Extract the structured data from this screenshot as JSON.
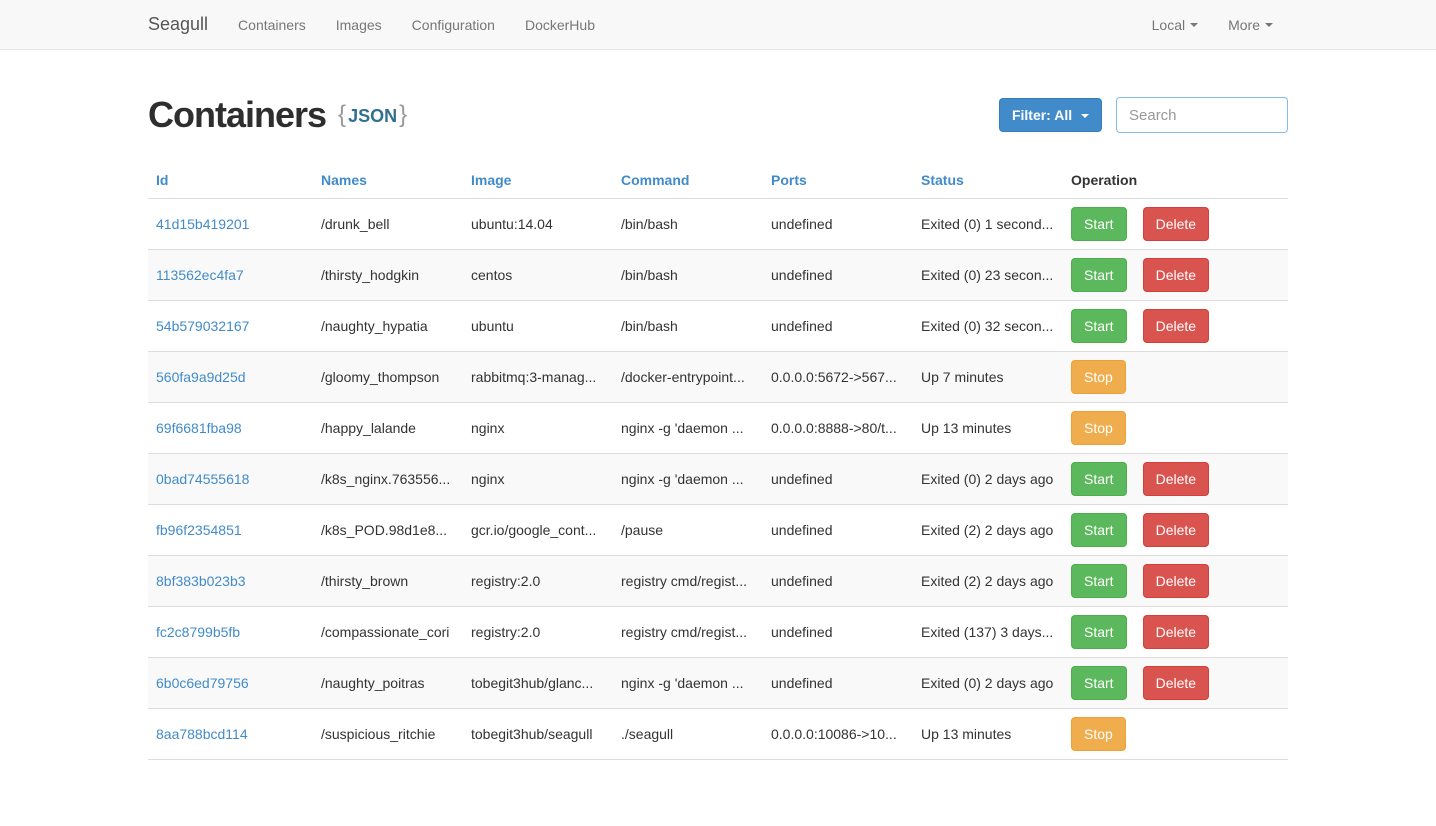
{
  "navbar": {
    "brand": "Seagull",
    "items": [
      {
        "label": "Containers"
      },
      {
        "label": "Images"
      },
      {
        "label": "Configuration"
      },
      {
        "label": "DockerHub"
      }
    ],
    "right_items": [
      {
        "label": "Local"
      },
      {
        "label": "More"
      }
    ]
  },
  "header": {
    "title": "Containers",
    "json_open_brace": "{",
    "json_label": "JSON",
    "json_close_brace": "}",
    "filter_button_label": "Filter: All",
    "search_placeholder": "Search",
    "search_value": ""
  },
  "colors": {
    "primary": "#428bca",
    "success": "#5cb85c",
    "danger": "#d9534f",
    "warning": "#f0ad4e",
    "navbar_bg": "#f8f8f8",
    "stripe_bg": "#f9f9f9"
  },
  "table": {
    "columns": [
      {
        "label": "Id",
        "sortable": true
      },
      {
        "label": "Names",
        "sortable": true
      },
      {
        "label": "Image",
        "sortable": true
      },
      {
        "label": "Command",
        "sortable": true
      },
      {
        "label": "Ports",
        "sortable": true
      },
      {
        "label": "Status",
        "sortable": true
      },
      {
        "label": "Operation",
        "sortable": false
      }
    ],
    "rows": [
      {
        "id": "41d15b419201",
        "name": "/drunk_bell",
        "image": "ubuntu:14.04",
        "command": "/bin/bash",
        "ports": "undefined",
        "status": "Exited (0) 1 second...",
        "actions": [
          {
            "label": "Start",
            "type": "success"
          },
          {
            "label": "Delete",
            "type": "danger"
          }
        ]
      },
      {
        "id": "113562ec4fa7",
        "name": "/thirsty_hodgkin",
        "image": "centos",
        "command": "/bin/bash",
        "ports": "undefined",
        "status": "Exited (0) 23 secon...",
        "actions": [
          {
            "label": "Start",
            "type": "success"
          },
          {
            "label": "Delete",
            "type": "danger"
          }
        ]
      },
      {
        "id": "54b579032167",
        "name": "/naughty_hypatia",
        "image": "ubuntu",
        "command": "/bin/bash",
        "ports": "undefined",
        "status": "Exited (0) 32 secon...",
        "actions": [
          {
            "label": "Start",
            "type": "success"
          },
          {
            "label": "Delete",
            "type": "danger"
          }
        ]
      },
      {
        "id": "560fa9a9d25d",
        "name": "/gloomy_thompson",
        "image": "rabbitmq:3-manag...",
        "command": "/docker-entrypoint...",
        "ports": "0.0.0.0:5672->567...",
        "status": "Up 7 minutes",
        "actions": [
          {
            "label": "Stop",
            "type": "warning"
          }
        ]
      },
      {
        "id": "69f6681fba98",
        "name": "/happy_lalande",
        "image": "nginx",
        "command": "nginx -g 'daemon ...",
        "ports": "0.0.0.0:8888->80/t...",
        "status": "Up 13 minutes",
        "actions": [
          {
            "label": "Stop",
            "type": "warning"
          }
        ]
      },
      {
        "id": "0bad74555618",
        "name": "/k8s_nginx.763556...",
        "image": "nginx",
        "command": "nginx -g 'daemon ...",
        "ports": "undefined",
        "status": "Exited (0) 2 days ago",
        "actions": [
          {
            "label": "Start",
            "type": "success"
          },
          {
            "label": "Delete",
            "type": "danger"
          }
        ]
      },
      {
        "id": "fb96f2354851",
        "name": "/k8s_POD.98d1e8...",
        "image": "gcr.io/google_cont...",
        "command": "/pause",
        "ports": "undefined",
        "status": "Exited (2) 2 days ago",
        "actions": [
          {
            "label": "Start",
            "type": "success"
          },
          {
            "label": "Delete",
            "type": "danger"
          }
        ]
      },
      {
        "id": "8bf383b023b3",
        "name": "/thirsty_brown",
        "image": "registry:2.0",
        "command": "registry cmd/regist...",
        "ports": "undefined",
        "status": "Exited (2) 2 days ago",
        "actions": [
          {
            "label": "Start",
            "type": "success"
          },
          {
            "label": "Delete",
            "type": "danger"
          }
        ]
      },
      {
        "id": "fc2c8799b5fb",
        "name": "/compassionate_cori",
        "image": "registry:2.0",
        "command": "registry cmd/regist...",
        "ports": "undefined",
        "status": "Exited (137) 3 days...",
        "actions": [
          {
            "label": "Start",
            "type": "success"
          },
          {
            "label": "Delete",
            "type": "danger"
          }
        ]
      },
      {
        "id": "6b0c6ed79756",
        "name": "/naughty_poitras",
        "image": "tobegit3hub/glanc...",
        "command": "nginx -g 'daemon ...",
        "ports": "undefined",
        "status": "Exited (0) 2 days ago",
        "actions": [
          {
            "label": "Start",
            "type": "success"
          },
          {
            "label": "Delete",
            "type": "danger"
          }
        ]
      },
      {
        "id": "8aa788bcd114",
        "name": "/suspicious_ritchie",
        "image": "tobegit3hub/seagull",
        "command": "./seagull",
        "ports": "0.0.0.0:10086->10...",
        "status": "Up 13 minutes",
        "actions": [
          {
            "label": "Stop",
            "type": "warning"
          }
        ]
      }
    ]
  }
}
